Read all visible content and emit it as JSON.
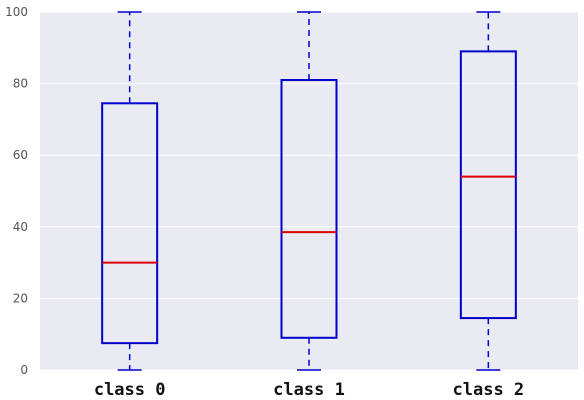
{
  "chart_data": {
    "type": "box",
    "categories": [
      "class 0",
      "class 1",
      "class 2"
    ],
    "boxes": [
      {
        "whisker_low": 0,
        "q1": 7.5,
        "median": 30,
        "q3": 74.5,
        "whisker_high": 100
      },
      {
        "whisker_low": 0,
        "q1": 9,
        "median": 38.5,
        "q3": 81,
        "whisker_high": 100
      },
      {
        "whisker_low": 0,
        "q1": 14.5,
        "median": 54,
        "q3": 89,
        "whisker_high": 100
      }
    ],
    "title": "",
    "xlabel": "",
    "ylabel": "",
    "ylim": [
      0,
      100
    ],
    "yticks": [
      0,
      20,
      40,
      60,
      80,
      100
    ],
    "grid": true,
    "colors": {
      "background": "#EAEAF2",
      "grid": "#FFFFFF",
      "box": "#0000CC",
      "median": "#DD0000"
    }
  }
}
